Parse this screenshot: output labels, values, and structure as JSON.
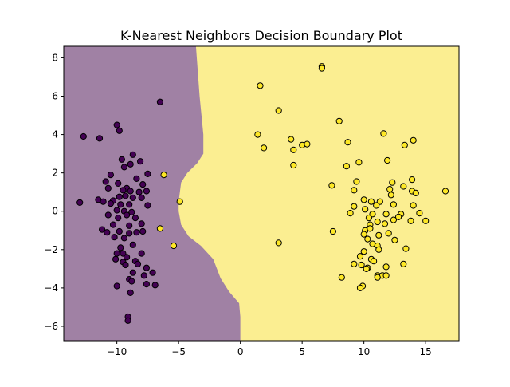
{
  "chart_data": {
    "type": "scatter",
    "title": "K-Nearest Neighbors Decision Boundary Plot",
    "xlabel": "",
    "ylabel": "",
    "xlim": [
      -14.3,
      17.7
    ],
    "ylim": [
      -6.75,
      8.6
    ],
    "x_ticks": [
      -10,
      -5,
      0,
      5,
      10,
      15
    ],
    "y_ticks": [
      -6,
      -4,
      -2,
      0,
      2,
      4,
      6,
      8
    ],
    "grid": false,
    "legend": "none",
    "colors": {
      "class_0_region": "#a081a4",
      "class_1_region": "#fbee91",
      "class_0_point": "#440154",
      "class_1_point": "#fde725",
      "point_edge": "#000000"
    },
    "decision_boundary": [
      [
        -3.6,
        8.6
      ],
      [
        -3.3,
        6.0
      ],
      [
        -3.0,
        4.0
      ],
      [
        -3.0,
        3.0
      ],
      [
        -3.5,
        2.5
      ],
      [
        -4.3,
        2.0
      ],
      [
        -4.8,
        1.5
      ],
      [
        -5.0,
        0.5
      ],
      [
        -5.0,
        0.0
      ],
      [
        -4.8,
        -0.7
      ],
      [
        -4.2,
        -1.3
      ],
      [
        -3.2,
        -1.8
      ],
      [
        -2.2,
        -2.5
      ],
      [
        -1.6,
        -3.5
      ],
      [
        -0.9,
        -4.2
      ],
      [
        -0.1,
        -4.8
      ],
      [
        0.0,
        -5.5
      ],
      [
        0.0,
        -6.75
      ]
    ],
    "series": [
      {
        "class": 0,
        "points": [
          [
            -6.5,
            5.7
          ],
          [
            -10.0,
            4.5
          ],
          [
            -9.8,
            4.2
          ],
          [
            -12.7,
            3.9
          ],
          [
            -11.4,
            3.8
          ],
          [
            -8.7,
            2.95
          ],
          [
            -9.6,
            2.7
          ],
          [
            -8.1,
            2.6
          ],
          [
            -9.4,
            2.3
          ],
          [
            -8.9,
            2.45
          ],
          [
            -10.5,
            1.9
          ],
          [
            -7.5,
            1.95
          ],
          [
            -10.9,
            1.55
          ],
          [
            -8.4,
            1.7
          ],
          [
            -9.9,
            1.45
          ],
          [
            -9.2,
            1.2
          ],
          [
            -7.9,
            1.4
          ],
          [
            -10.7,
            1.2
          ],
          [
            -9.5,
            1.1
          ],
          [
            -8.9,
            1.05
          ],
          [
            -8.2,
            1.0
          ],
          [
            -7.6,
            1.05
          ],
          [
            -11.5,
            0.6
          ],
          [
            -10.3,
            0.55
          ],
          [
            -9.8,
            0.75
          ],
          [
            -9.3,
            0.8
          ],
          [
            -8.7,
            0.7
          ],
          [
            -8.0,
            0.7
          ],
          [
            -13.0,
            0.45
          ],
          [
            -11.1,
            0.5
          ],
          [
            -10.5,
            0.4
          ],
          [
            -9.7,
            0.35
          ],
          [
            -9.0,
            0.35
          ],
          [
            -10.0,
            0.05
          ],
          [
            -9.4,
            0.0
          ],
          [
            -8.8,
            -0.05
          ],
          [
            -7.5,
            0.3
          ],
          [
            -10.7,
            -0.2
          ],
          [
            -9.9,
            -0.35
          ],
          [
            -9.2,
            -0.2
          ],
          [
            -8.5,
            -0.35
          ],
          [
            -10.3,
            -0.7
          ],
          [
            -9.0,
            -0.75
          ],
          [
            -8.0,
            -0.65
          ],
          [
            -11.2,
            -0.95
          ],
          [
            -10.8,
            -1.1
          ],
          [
            -9.8,
            -1.05
          ],
          [
            -9.0,
            -1.15
          ],
          [
            -8.4,
            -1.1
          ],
          [
            -7.9,
            -1.05
          ],
          [
            -10.2,
            -1.35
          ],
          [
            -9.4,
            -1.4
          ],
          [
            -8.7,
            -1.75
          ],
          [
            -9.7,
            -1.9
          ],
          [
            -10.0,
            -2.2
          ],
          [
            -9.5,
            -2.2
          ],
          [
            -9.2,
            -2.4
          ],
          [
            -10.1,
            -2.5
          ],
          [
            -8.0,
            -2.2
          ],
          [
            -8.5,
            -2.6
          ],
          [
            -9.5,
            -2.65
          ],
          [
            -8.3,
            -2.75
          ],
          [
            -9.3,
            -2.8
          ],
          [
            -7.6,
            -2.95
          ],
          [
            -7.1,
            -3.2
          ],
          [
            -8.7,
            -3.2
          ],
          [
            -7.8,
            -3.35
          ],
          [
            -9.0,
            -3.55
          ],
          [
            -8.8,
            -3.65
          ],
          [
            -7.6,
            -3.8
          ],
          [
            -6.9,
            -3.85
          ],
          [
            -10.0,
            -3.9
          ],
          [
            -8.9,
            -4.25
          ],
          [
            -9.1,
            -5.5
          ],
          [
            -9.1,
            -5.7
          ]
        ]
      },
      {
        "class": 1,
        "points": [
          [
            6.6,
            7.55
          ],
          [
            6.6,
            7.45
          ],
          [
            1.6,
            6.55
          ],
          [
            3.1,
            5.25
          ],
          [
            8.0,
            4.7
          ],
          [
            11.6,
            4.05
          ],
          [
            1.4,
            4.0
          ],
          [
            4.1,
            3.75
          ],
          [
            8.7,
            3.6
          ],
          [
            14.0,
            3.7
          ],
          [
            13.3,
            3.45
          ],
          [
            1.9,
            3.3
          ],
          [
            4.3,
            3.2
          ],
          [
            5.0,
            3.45
          ],
          [
            5.4,
            3.5
          ],
          [
            9.6,
            2.55
          ],
          [
            11.9,
            2.65
          ],
          [
            4.3,
            2.4
          ],
          [
            8.6,
            2.35
          ],
          [
            -6.2,
            1.9
          ],
          [
            9.4,
            1.55
          ],
          [
            13.9,
            1.65
          ],
          [
            12.3,
            1.5
          ],
          [
            7.4,
            1.35
          ],
          [
            13.2,
            1.3
          ],
          [
            12.1,
            1.15
          ],
          [
            9.2,
            1.1
          ],
          [
            13.9,
            1.05
          ],
          [
            14.2,
            0.95
          ],
          [
            16.6,
            1.05
          ],
          [
            12.2,
            0.85
          ],
          [
            10.0,
            0.6
          ],
          [
            10.6,
            0.5
          ],
          [
            11.3,
            0.5
          ],
          [
            11.0,
            0.3
          ],
          [
            12.4,
            0.35
          ],
          [
            14.0,
            0.3
          ],
          [
            9.2,
            0.25
          ],
          [
            -4.9,
            0.5
          ],
          [
            10.1,
            0.1
          ],
          [
            8.9,
            -0.1
          ],
          [
            11.8,
            -0.15
          ],
          [
            10.7,
            -0.15
          ],
          [
            13.0,
            -0.15
          ],
          [
            12.8,
            -0.3
          ],
          [
            14.5,
            -0.1
          ],
          [
            10.4,
            -0.35
          ],
          [
            11.1,
            -0.55
          ],
          [
            11.7,
            -0.65
          ],
          [
            12.4,
            -0.45
          ],
          [
            13.8,
            -0.5
          ],
          [
            15.0,
            -0.5
          ],
          [
            10.5,
            -0.7
          ],
          [
            -6.5,
            -0.9
          ],
          [
            10.1,
            -1.0
          ],
          [
            10.5,
            -0.9
          ],
          [
            7.5,
            -1.05
          ],
          [
            10.0,
            -1.2
          ],
          [
            11.2,
            -1.25
          ],
          [
            10.3,
            -1.45
          ],
          [
            12.0,
            -1.15
          ],
          [
            12.5,
            -1.5
          ],
          [
            10.7,
            -1.7
          ],
          [
            11.1,
            -1.8
          ],
          [
            -5.4,
            -1.8
          ],
          [
            3.1,
            -1.65
          ],
          [
            13.4,
            -1.95
          ],
          [
            11.2,
            -2.0
          ],
          [
            10.0,
            -2.1
          ],
          [
            9.7,
            -2.35
          ],
          [
            10.6,
            -2.5
          ],
          [
            10.8,
            -2.6
          ],
          [
            9.2,
            -2.75
          ],
          [
            9.8,
            -2.8
          ],
          [
            13.2,
            -2.75
          ],
          [
            11.8,
            -2.9
          ],
          [
            10.3,
            -2.95
          ],
          [
            10.2,
            -3.0
          ],
          [
            11.1,
            -3.35
          ],
          [
            11.5,
            -3.35
          ],
          [
            8.2,
            -3.45
          ],
          [
            11.8,
            -3.35
          ],
          [
            11.1,
            -3.45
          ],
          [
            9.9,
            -3.9
          ],
          [
            9.7,
            -4.0
          ]
        ]
      }
    ]
  }
}
